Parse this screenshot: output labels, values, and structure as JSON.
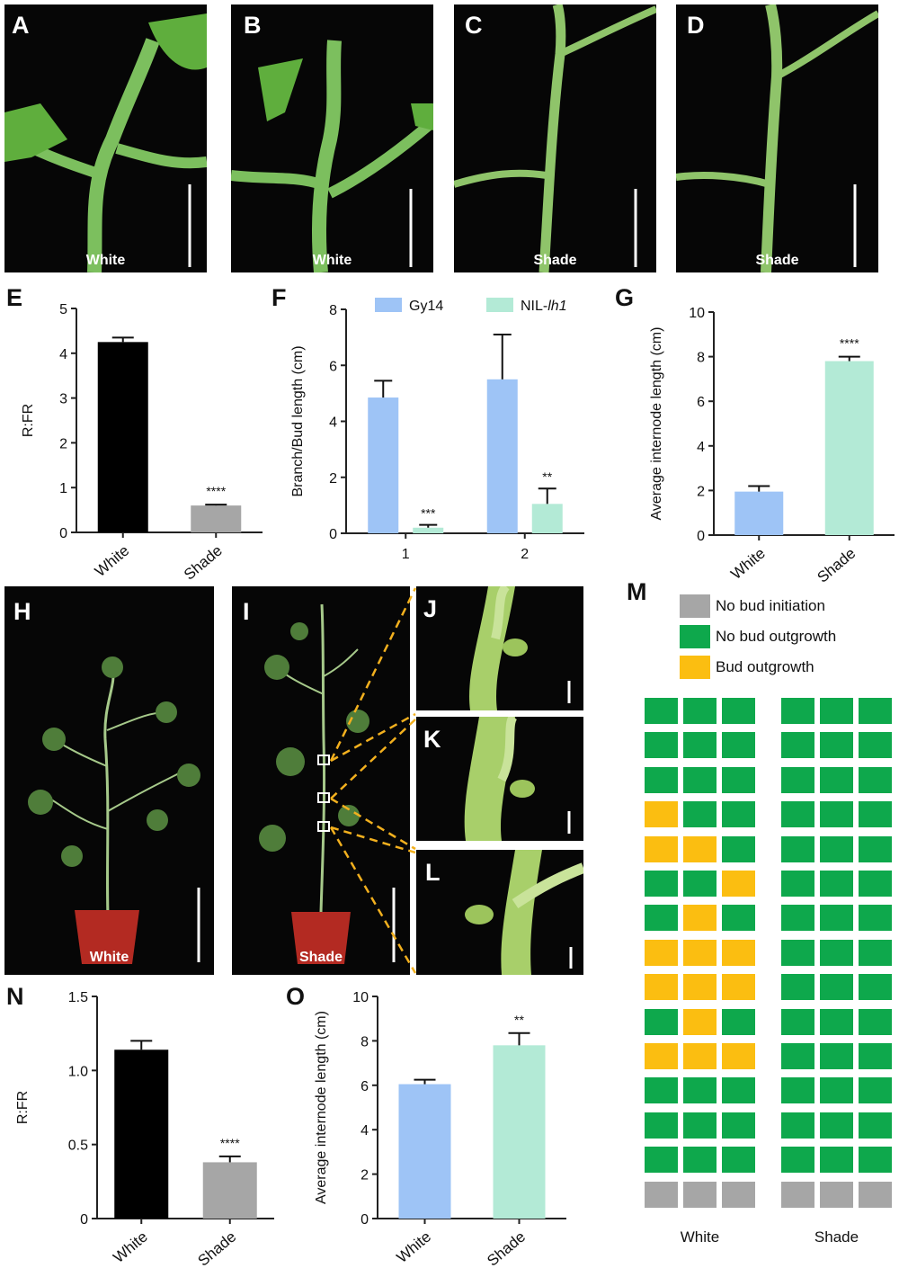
{
  "photos_top": [
    {
      "letter": "A",
      "condition": "White"
    },
    {
      "letter": "B",
      "condition": "White"
    },
    {
      "letter": "C",
      "condition": "Shade"
    },
    {
      "letter": "D",
      "condition": "Shade"
    }
  ],
  "photos_mid": [
    {
      "letter": "H",
      "condition": "White"
    },
    {
      "letter": "I",
      "condition": "Shade"
    },
    {
      "letter": "J",
      "condition": ""
    },
    {
      "letter": "K",
      "condition": ""
    },
    {
      "letter": "L",
      "condition": ""
    }
  ],
  "colors": {
    "white_bar_E": "#000000",
    "shade_bar_E": "#a6a6a6",
    "gy14": "#9ec4f6",
    "nil": "#b3ead6",
    "no_bud_initiation": "#a6a6a6",
    "no_bud_outgrowth": "#0ea84c",
    "bud_outgrowth": "#fbbe11",
    "dash": "#f2b01e"
  },
  "chart_data": [
    {
      "panel": "E",
      "type": "bar",
      "categories": [
        "White",
        "Shade"
      ],
      "values": [
        4.25,
        0.6
      ],
      "errors": [
        0.1,
        0.02
      ],
      "significance": [
        "",
        "****"
      ],
      "ylabel": "R:FR",
      "ylim": [
        0,
        5
      ],
      "yticks": [
        "0",
        "1",
        "2",
        "3",
        "4",
        "5"
      ]
    },
    {
      "panel": "F",
      "type": "bar",
      "categories": [
        "1",
        "2"
      ],
      "series": [
        {
          "name": "Gy14",
          "values": [
            4.85,
            5.5
          ],
          "errors": [
            0.6,
            1.6
          ]
        },
        {
          "name": "NIL-lh1",
          "values": [
            0.2,
            1.05
          ],
          "errors": [
            0.1,
            0.55
          ]
        }
      ],
      "significance": [
        "***",
        "**"
      ],
      "ylabel": "Branch/Bud length (cm)",
      "ylim": [
        0,
        8
      ],
      "yticks": [
        "0",
        "2",
        "4",
        "6",
        "8"
      ],
      "legend_prefix": "NIL-",
      "legend_italic": "lh1"
    },
    {
      "panel": "G",
      "type": "bar",
      "categories": [
        "White",
        "Shade"
      ],
      "values": [
        1.95,
        7.8
      ],
      "errors": [
        0.25,
        0.2
      ],
      "significance": [
        "",
        "****"
      ],
      "ylabel": "Average internode length (cm)",
      "ylim": [
        0,
        10
      ],
      "yticks": [
        "0",
        "2",
        "4",
        "6",
        "8",
        "10"
      ]
    },
    {
      "panel": "N",
      "type": "bar",
      "categories": [
        "White",
        "Shade"
      ],
      "values": [
        1.14,
        0.38
      ],
      "errors": [
        0.06,
        0.04
      ],
      "significance": [
        "",
        "****"
      ],
      "ylabel": "R:FR",
      "ylim": [
        0,
        1.5
      ],
      "yticks": [
        "0",
        "0.5",
        "1.0",
        "1.5"
      ]
    },
    {
      "panel": "O",
      "type": "bar",
      "categories": [
        "White",
        "Shade"
      ],
      "values": [
        6.05,
        7.8
      ],
      "errors": [
        0.2,
        0.55
      ],
      "significance": [
        "",
        "**"
      ],
      "ylabel": "Average internode  length (cm)",
      "ylim": [
        0,
        10
      ],
      "yticks": [
        "0",
        "2",
        "4",
        "6",
        "8",
        "10"
      ]
    },
    {
      "panel": "M",
      "type": "heatmap",
      "legend": [
        {
          "key": "G",
          "label": "No bud initiation"
        },
        {
          "key": "N",
          "label": "No bud outgrowth"
        },
        {
          "key": "O",
          "label": "Bud outgrowth"
        }
      ],
      "groups": [
        {
          "name": "White",
          "rows": [
            "NNN",
            "NNN",
            "NNN",
            "ONN",
            "OON",
            "NNO",
            "NON",
            "OOO",
            "OOO",
            "NON",
            "OOO",
            "NNN",
            "NNN",
            "NNN",
            "GGG"
          ]
        },
        {
          "name": "Shade",
          "rows": [
            "NNN",
            "NNN",
            "NNN",
            "NNN",
            "NNN",
            "NNN",
            "NNN",
            "NNN",
            "NNN",
            "NNN",
            "NNN",
            "NNN",
            "NNN",
            "NNN",
            "GGG"
          ]
        }
      ]
    }
  ]
}
